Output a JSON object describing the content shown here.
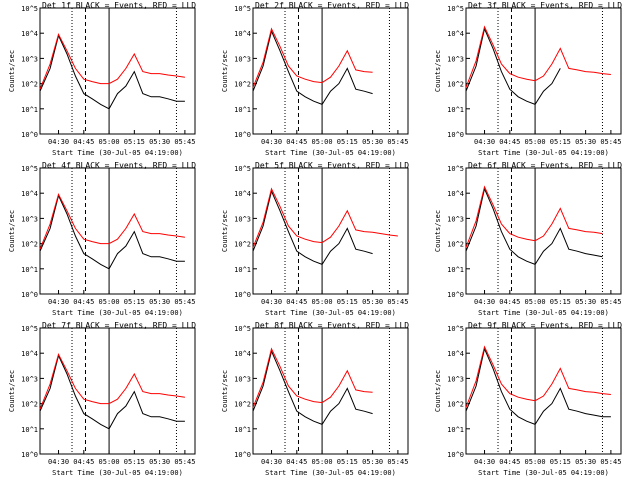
{
  "chart_data": [
    {
      "type": "line",
      "title": "Det 1f BLACK = Events, RED = LLD",
      "xlabel": "Start Time (30-Jul-05 04:19:00)",
      "ylabel": "Counts/sec",
      "yscale": "log",
      "ylim": [
        1,
        100000
      ],
      "xticks": [
        "04:30",
        "04:45",
        "05:00",
        "05:15",
        "05:30",
        "05:45"
      ],
      "yticks": [
        "10^0",
        "10^1",
        "10^2",
        "10^3",
        "10^4",
        "10^5"
      ],
      "lines": {
        "dotted": "04:38",
        "dashed": "04:46",
        "solid": "05:00",
        "dotted2": "05:40"
      },
      "series": [
        {
          "name": "BLACK = Events",
          "color": "#000000",
          "x": [
            "04:19",
            "04:25",
            "04:30",
            "04:35",
            "04:40",
            "04:45",
            "04:50",
            "04:55",
            "05:00",
            "05:05",
            "05:10",
            "05:15",
            "05:20",
            "05:25",
            "05:30",
            "05:35",
            "05:40",
            "05:45"
          ],
          "y": [
            50,
            400,
            8000,
            1500,
            200,
            40,
            25,
            15,
            10,
            40,
            80,
            300,
            40,
            30,
            30,
            25,
            20,
            20
          ]
        },
        {
          "name": "RED = LLD",
          "color": "#ff0000",
          "x": [
            "04:19",
            "04:25",
            "04:30",
            "04:35",
            "04:40",
            "04:45",
            "04:50",
            "04:55",
            "05:00",
            "05:05",
            "05:10",
            "05:15",
            "05:20",
            "05:25",
            "05:30",
            "05:35",
            "05:40",
            "05:45"
          ],
          "y": [
            60,
            600,
            9000,
            2000,
            400,
            150,
            120,
            100,
            100,
            150,
            400,
            1500,
            300,
            250,
            250,
            220,
            200,
            180
          ]
        }
      ]
    },
    {
      "type": "line",
      "title": "Det 2f BLACK = Events, RED = LLD",
      "xlabel": "Start Time (30-Jul-05 04:19:00)",
      "ylabel": "Counts/sec",
      "yscale": "log",
      "ylim": [
        1,
        100000
      ],
      "xticks": [
        "04:30",
        "04:45",
        "05:00",
        "05:15",
        "05:30",
        "05:45"
      ],
      "yticks": [
        "10^0",
        "10^1",
        "10^2",
        "10^3",
        "10^4",
        "10^5"
      ],
      "lines": {
        "dotted": "04:38",
        "dashed": "04:46",
        "solid": "05:00",
        "dotted2": "05:40"
      },
      "series": [
        {
          "name": "BLACK = Events",
          "color": "#000000",
          "x": [
            "04:19",
            "04:25",
            "04:30",
            "04:35",
            "04:40",
            "04:45",
            "04:50",
            "04:55",
            "05:00",
            "05:05",
            "05:10",
            "05:15",
            "05:20",
            "05:25",
            "05:30"
          ],
          "y": [
            50,
            500,
            12000,
            2000,
            300,
            50,
            30,
            20,
            15,
            50,
            100,
            400,
            60,
            50,
            40
          ]
        },
        {
          "name": "RED = LLD",
          "color": "#ff0000",
          "x": [
            "04:19",
            "04:25",
            "04:30",
            "04:35",
            "04:40",
            "04:45",
            "04:50",
            "04:55",
            "05:00",
            "05:05",
            "05:10",
            "05:15",
            "05:20",
            "05:25",
            "05:30"
          ],
          "y": [
            70,
            700,
            15000,
            3000,
            500,
            200,
            150,
            120,
            110,
            180,
            500,
            2000,
            350,
            300,
            280
          ]
        }
      ]
    },
    {
      "type": "line",
      "title": "Det 3f BLACK = Events, RED = LLD",
      "xlabel": "Start Time (30-Jul-05 04:19:00)",
      "ylabel": "Counts/sec",
      "yscale": "log",
      "ylim": [
        1,
        100000
      ],
      "xticks": [
        "04:30",
        "04:45",
        "05:00",
        "05:15",
        "05:30",
        "05:45"
      ],
      "yticks": [
        "10^0",
        "10^1",
        "10^2",
        "10^3",
        "10^4",
        "10^5"
      ],
      "lines": {
        "dotted": "04:38",
        "dashed": "04:46",
        "solid": "05:00",
        "dotted2": "05:40"
      },
      "series": [
        {
          "name": "BLACK = Events",
          "color": "#000000",
          "x": [
            "04:19",
            "04:25",
            "04:30",
            "04:35",
            "04:40",
            "04:45",
            "04:50",
            "04:55",
            "05:00",
            "05:05",
            "05:10",
            "05:15"
          ],
          "y": [
            50,
            500,
            15000,
            2500,
            300,
            60,
            30,
            20,
            15,
            50,
            100,
            400
          ]
        },
        {
          "name": "RED = LLD",
          "color": "#ff0000",
          "x": [
            "04:19",
            "04:25",
            "04:30",
            "04:35",
            "04:40",
            "04:45",
            "04:50",
            "04:55",
            "05:00",
            "05:05",
            "05:10",
            "05:15",
            "05:20",
            "05:25",
            "05:30",
            "05:35",
            "05:40",
            "05:45"
          ],
          "y": [
            70,
            800,
            18000,
            3500,
            600,
            250,
            180,
            150,
            130,
            200,
            600,
            2500,
            400,
            350,
            300,
            280,
            250,
            230
          ]
        }
      ]
    },
    {
      "type": "line",
      "title": "Det 4f BLACK = Events, RED = LLD",
      "xlabel": "Start Time (30-Jul-05 04:19:00)",
      "ylabel": "Counts/sec",
      "yscale": "log",
      "ylim": [
        1,
        100000
      ],
      "xticks": [
        "04:30",
        "04:45",
        "05:00",
        "05:15",
        "05:30",
        "05:45"
      ],
      "yticks": [
        "10^0",
        "10^1",
        "10^2",
        "10^3",
        "10^4",
        "10^5"
      ],
      "lines": {
        "dotted": "04:38",
        "dashed": "04:46",
        "solid": "05:00",
        "dotted2": "05:40"
      },
      "series": [
        {
          "name": "BLACK = Events",
          "color": "#000000",
          "x": [
            "04:19",
            "04:25",
            "04:30",
            "04:35",
            "04:40",
            "04:45",
            "04:50",
            "04:55",
            "05:00",
            "05:05",
            "05:10",
            "05:15",
            "05:20",
            "05:25",
            "05:30",
            "05:35",
            "05:40",
            "05:45"
          ],
          "y": [
            50,
            400,
            8000,
            1500,
            200,
            40,
            25,
            15,
            10,
            40,
            80,
            300,
            40,
            30,
            30,
            25,
            20,
            20
          ]
        },
        {
          "name": "RED = LLD",
          "color": "#ff0000",
          "x": [
            "04:19",
            "04:25",
            "04:30",
            "04:35",
            "04:40",
            "04:45",
            "04:50",
            "04:55",
            "05:00",
            "05:05",
            "05:10",
            "05:15",
            "05:20",
            "05:25",
            "05:30",
            "05:35",
            "05:40",
            "05:45"
          ],
          "y": [
            60,
            600,
            9000,
            2000,
            400,
            150,
            120,
            100,
            100,
            150,
            400,
            1500,
            300,
            250,
            250,
            220,
            200,
            180
          ]
        }
      ]
    },
    {
      "type": "line",
      "title": "Det 5f BLACK = Events, RED = LLD",
      "xlabel": "Start Time (30-Jul-05 04:19:00)",
      "ylabel": "Counts/sec",
      "yscale": "log",
      "ylim": [
        1,
        100000
      ],
      "xticks": [
        "04:30",
        "04:45",
        "05:00",
        "05:15",
        "05:30",
        "05:45"
      ],
      "yticks": [
        "10^0",
        "10^1",
        "10^2",
        "10^3",
        "10^4",
        "10^5"
      ],
      "lines": {
        "dotted": "04:38",
        "dashed": "04:46",
        "solid": "05:00",
        "dotted2": "05:40"
      },
      "series": [
        {
          "name": "BLACK = Events",
          "color": "#000000",
          "x": [
            "04:19",
            "04:25",
            "04:30",
            "04:35",
            "04:40",
            "04:45",
            "04:50",
            "04:55",
            "05:00",
            "05:05",
            "05:10",
            "05:15",
            "05:20",
            "05:25",
            "05:30"
          ],
          "y": [
            50,
            500,
            12000,
            2000,
            300,
            50,
            30,
            20,
            15,
            50,
            100,
            400,
            60,
            50,
            40
          ]
        },
        {
          "name": "RED = LLD",
          "color": "#ff0000",
          "x": [
            "04:19",
            "04:25",
            "04:30",
            "04:35",
            "04:40",
            "04:45",
            "04:50",
            "04:55",
            "05:00",
            "05:05",
            "05:10",
            "05:15",
            "05:20",
            "05:25",
            "05:30",
            "05:35",
            "05:40",
            "05:45"
          ],
          "y": [
            70,
            700,
            15000,
            3000,
            500,
            200,
            150,
            120,
            110,
            180,
            500,
            2000,
            350,
            300,
            280,
            250,
            220,
            200
          ]
        }
      ]
    },
    {
      "type": "line",
      "title": "Det 6f BLACK = Events, RED = LLD",
      "xlabel": "Start Time (30-Jul-05 04:19:00)",
      "ylabel": "Counts/sec",
      "yscale": "log",
      "ylim": [
        1,
        100000
      ],
      "xticks": [
        "04:30",
        "04:45",
        "05:00",
        "05:15",
        "05:30",
        "05:45"
      ],
      "yticks": [
        "10^0",
        "10^1",
        "10^2",
        "10^3",
        "10^4",
        "10^5"
      ],
      "lines": {
        "dotted": "04:38",
        "dashed": "04:46",
        "solid": "05:00",
        "dotted2": "05:40"
      },
      "series": [
        {
          "name": "BLACK = Events",
          "color": "#000000",
          "x": [
            "04:19",
            "04:25",
            "04:30",
            "04:35",
            "04:40",
            "04:45",
            "04:50",
            "04:55",
            "05:00",
            "05:05",
            "05:10",
            "05:15",
            "05:20",
            "05:25",
            "05:30",
            "05:35",
            "05:40"
          ],
          "y": [
            50,
            500,
            15000,
            2500,
            300,
            60,
            30,
            20,
            15,
            50,
            100,
            400,
            60,
            50,
            40,
            35,
            30
          ]
        },
        {
          "name": "RED = LLD",
          "color": "#ff0000",
          "x": [
            "04:19",
            "04:25",
            "04:30",
            "04:35",
            "04:40",
            "04:45",
            "04:50",
            "04:55",
            "05:00",
            "05:05",
            "05:10",
            "05:15",
            "05:20",
            "05:25",
            "05:30",
            "05:35",
            "05:40"
          ],
          "y": [
            70,
            800,
            18000,
            3500,
            600,
            250,
            180,
            150,
            130,
            200,
            600,
            2500,
            400,
            350,
            300,
            280,
            250
          ]
        }
      ]
    },
    {
      "type": "line",
      "title": "Det 7f BLACK = Events, RED = LLD",
      "xlabel": "Start Time (30-Jul-05 04:19:00)",
      "ylabel": "Counts/sec",
      "yscale": "log",
      "ylim": [
        1,
        100000
      ],
      "xticks": [
        "04:30",
        "04:45",
        "05:00",
        "05:15",
        "05:30",
        "05:45"
      ],
      "yticks": [
        "10^0",
        "10^1",
        "10^2",
        "10^3",
        "10^4",
        "10^5"
      ],
      "lines": {
        "dotted": "04:38",
        "dashed": "04:46",
        "solid": "05:00",
        "dotted2": "05:40"
      },
      "series": [
        {
          "name": "BLACK = Events",
          "color": "#000000",
          "x": [
            "04:19",
            "04:25",
            "04:30",
            "04:35",
            "04:40",
            "04:45",
            "04:50",
            "04:55",
            "05:00",
            "05:05",
            "05:10",
            "05:15",
            "05:20",
            "05:25",
            "05:30",
            "05:35",
            "05:40",
            "05:45"
          ],
          "y": [
            50,
            400,
            8000,
            1500,
            200,
            40,
            25,
            15,
            10,
            40,
            80,
            300,
            40,
            30,
            30,
            25,
            20,
            20
          ]
        },
        {
          "name": "RED = LLD",
          "color": "#ff0000",
          "x": [
            "04:19",
            "04:25",
            "04:30",
            "04:35",
            "04:40",
            "04:45",
            "04:50",
            "04:55",
            "05:00",
            "05:05",
            "05:10",
            "05:15",
            "05:20",
            "05:25",
            "05:30",
            "05:35",
            "05:40",
            "05:45"
          ],
          "y": [
            60,
            600,
            9000,
            2000,
            400,
            150,
            120,
            100,
            100,
            150,
            400,
            1500,
            300,
            250,
            250,
            220,
            200,
            180
          ]
        }
      ]
    },
    {
      "type": "line",
      "title": "Det 8f BLACK = Events, RED = LLD",
      "xlabel": "Start Time (30-Jul-05 04:19:00)",
      "ylabel": "Counts/sec",
      "yscale": "log",
      "ylim": [
        1,
        100000
      ],
      "xticks": [
        "04:30",
        "04:45",
        "05:00",
        "05:15",
        "05:30",
        "05:45"
      ],
      "yticks": [
        "10^0",
        "10^1",
        "10^2",
        "10^3",
        "10^4",
        "10^5"
      ],
      "lines": {
        "dotted": "04:38",
        "dashed": "04:46",
        "solid": "05:00",
        "dotted2": "05:40"
      },
      "series": [
        {
          "name": "BLACK = Events",
          "color": "#000000",
          "x": [
            "04:19",
            "04:25",
            "04:30",
            "04:35",
            "04:40",
            "04:45",
            "04:50",
            "04:55",
            "05:00",
            "05:05",
            "05:10",
            "05:15",
            "05:20",
            "05:25",
            "05:30"
          ],
          "y": [
            50,
            500,
            12000,
            2000,
            300,
            50,
            30,
            20,
            15,
            50,
            100,
            400,
            60,
            50,
            40
          ]
        },
        {
          "name": "RED = LLD",
          "color": "#ff0000",
          "x": [
            "04:19",
            "04:25",
            "04:30",
            "04:35",
            "04:40",
            "04:45",
            "04:50",
            "04:55",
            "05:00",
            "05:05",
            "05:10",
            "05:15",
            "05:20",
            "05:25",
            "05:30"
          ],
          "y": [
            70,
            700,
            15000,
            3000,
            500,
            200,
            150,
            120,
            110,
            180,
            500,
            2000,
            350,
            300,
            280
          ]
        }
      ]
    },
    {
      "type": "line",
      "title": "Det 9f BLACK = Events, RED = LLD",
      "xlabel": "Start Time (30-Jul-05 04:19:00)",
      "ylabel": "Counts/sec",
      "yscale": "log",
      "ylim": [
        1,
        100000
      ],
      "xticks": [
        "04:30",
        "04:45",
        "05:00",
        "05:15",
        "05:30",
        "05:45"
      ],
      "yticks": [
        "10^0",
        "10^1",
        "10^2",
        "10^3",
        "10^4",
        "10^5"
      ],
      "lines": {
        "dotted": "04:38",
        "dashed": "04:46",
        "solid": "05:00",
        "dotted2": "05:40"
      },
      "series": [
        {
          "name": "BLACK = Events",
          "color": "#000000",
          "x": [
            "04:19",
            "04:25",
            "04:30",
            "04:35",
            "04:40",
            "04:45",
            "04:50",
            "04:55",
            "05:00",
            "05:05",
            "05:10",
            "05:15",
            "05:20",
            "05:25",
            "05:30",
            "05:35",
            "05:40",
            "05:45"
          ],
          "y": [
            50,
            500,
            15000,
            2500,
            300,
            60,
            30,
            20,
            15,
            50,
            100,
            400,
            60,
            50,
            40,
            35,
            30,
            30
          ]
        },
        {
          "name": "RED = LLD",
          "color": "#ff0000",
          "x": [
            "04:19",
            "04:25",
            "04:30",
            "04:35",
            "04:40",
            "04:45",
            "04:50",
            "04:55",
            "05:00",
            "05:05",
            "05:10",
            "05:15",
            "05:20",
            "05:25",
            "05:30",
            "05:35",
            "05:40",
            "05:45"
          ],
          "y": [
            70,
            800,
            18000,
            3500,
            600,
            250,
            180,
            150,
            130,
            200,
            600,
            2500,
            400,
            350,
            300,
            280,
            250,
            230
          ]
        }
      ]
    }
  ]
}
